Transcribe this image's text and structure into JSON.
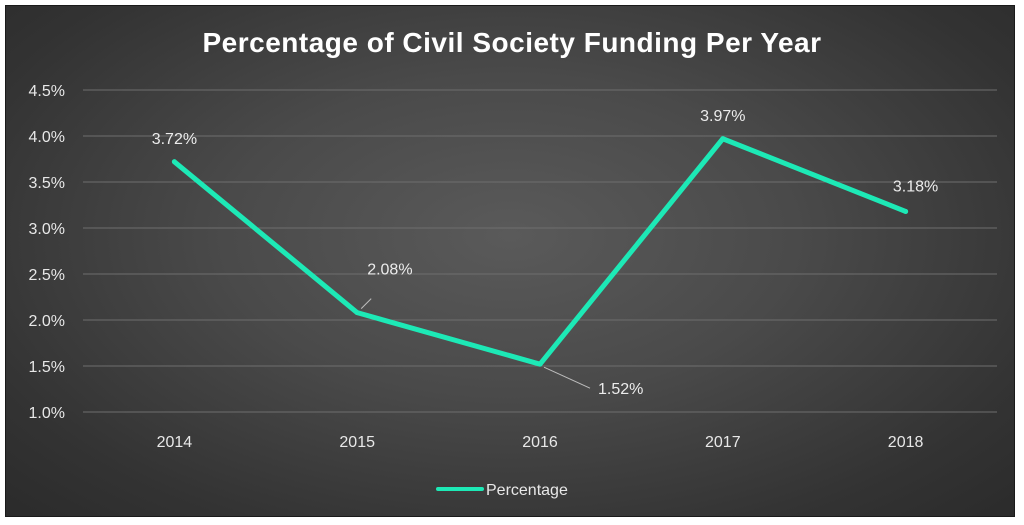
{
  "chart_data": {
    "type": "line",
    "title": "Percentage of Civil Society Funding Per Year",
    "categories": [
      "2014",
      "2015",
      "2016",
      "2017",
      "2018"
    ],
    "series": [
      {
        "name": "Percentage",
        "values": [
          3.72,
          2.08,
          1.52,
          3.97,
          3.18
        ],
        "labels": [
          "3.72%",
          "2.08%",
          "1.52%",
          "3.97%",
          "3.18%"
        ],
        "color": "#1de9b6"
      }
    ],
    "y_ticks": [
      "1.0%",
      "1.5%",
      "2.0%",
      "2.5%",
      "3.0%",
      "3.5%",
      "4.0%",
      "4.5%"
    ],
    "ylim": [
      1.0,
      4.5
    ],
    "xlabel": "",
    "ylabel": "",
    "grid": true,
    "legend_position": "bottom"
  },
  "colors": {
    "line": "#1de9b6",
    "grid": "#6e6e6e",
    "background": "#444444"
  }
}
